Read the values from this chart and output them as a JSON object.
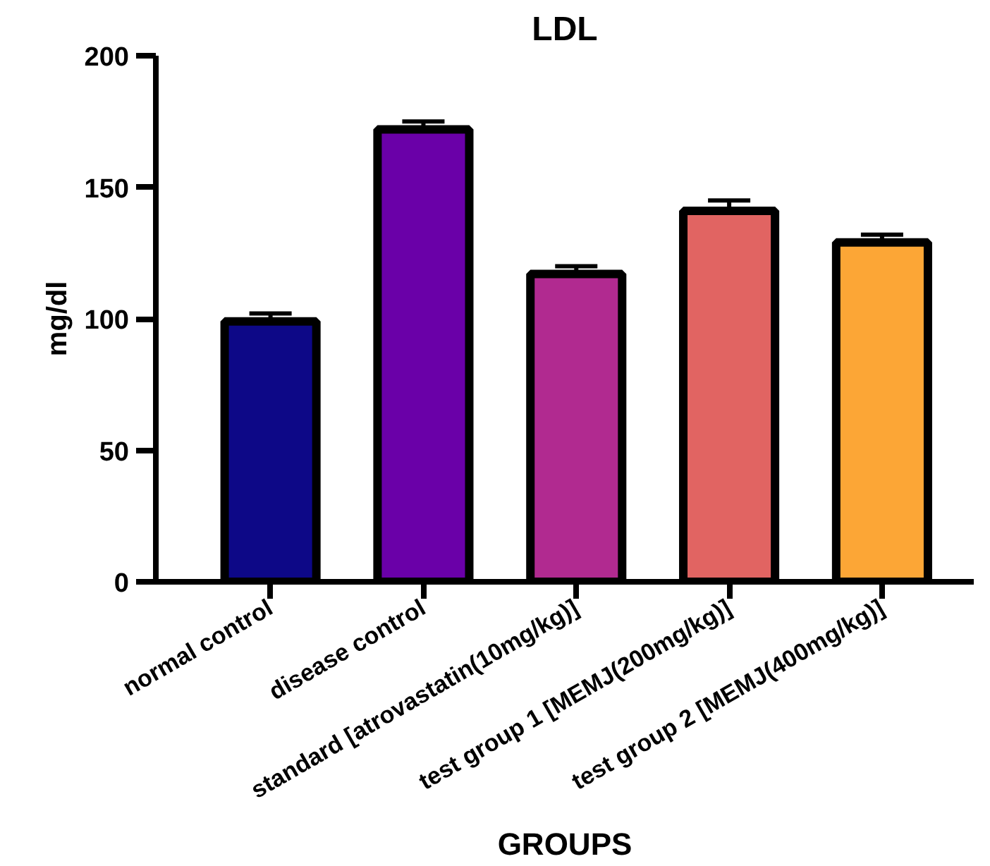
{
  "chart_data": {
    "type": "bar",
    "title": "LDL",
    "xlabel": "GROUPS",
    "ylabel": "mg/dl",
    "categories": [
      "normal control",
      "disease control",
      "standard [atrovastatin(10mg/kg)]",
      "test group 1 [MEMJ(200mg/kg)]",
      "test group 2 [MEMJ(400mg/kg)]"
    ],
    "values": [
      99,
      172,
      117,
      141,
      129
    ],
    "errors": [
      [
        99,
        102
      ],
      [
        172,
        175
      ],
      [
        117,
        120
      ],
      [
        141,
        145
      ],
      [
        129,
        132
      ]
    ],
    "colors": [
      "#0d0887",
      "#6a00a8",
      "#b12a90",
      "#e16462",
      "#fca636"
    ],
    "ylim": [
      0,
      200
    ],
    "yticks": [
      0,
      50,
      100,
      150,
      200
    ],
    "grid": false
  }
}
